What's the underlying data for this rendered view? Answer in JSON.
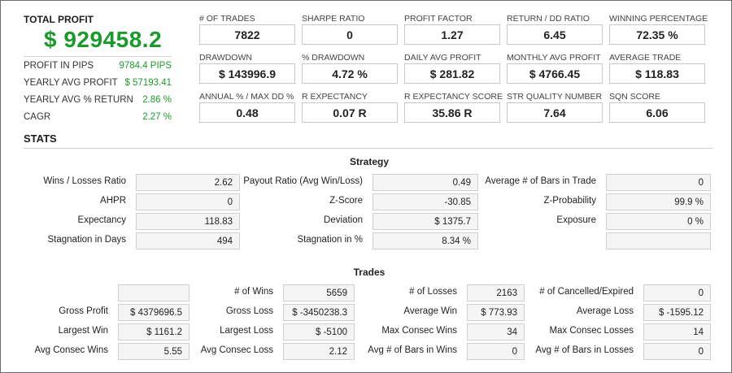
{
  "summary": {
    "total_profit_label": "TOTAL PROFIT",
    "total_profit_value": "$ 929458.2",
    "rows": [
      {
        "label": "PROFIT IN PIPS",
        "value": "9784.4 PIPS"
      },
      {
        "label": "YEARLY AVG PROFIT",
        "value": "$ 57193.41"
      },
      {
        "label": "YEARLY AVG % RETURN",
        "value": "2.86 %"
      },
      {
        "label": "CAGR",
        "value": "2.27 %"
      }
    ]
  },
  "metrics": [
    [
      {
        "label": "# OF TRADES",
        "value": "7822"
      },
      {
        "label": "SHARPE RATIO",
        "value": "0"
      },
      {
        "label": "PROFIT FACTOR",
        "value": "1.27"
      },
      {
        "label": "RETURN / DD RATIO",
        "value": "6.45"
      },
      {
        "label": "WINNING PERCENTAGE",
        "value": "72.35 %"
      }
    ],
    [
      {
        "label": "DRAWDOWN",
        "value": "$ 143996.9"
      },
      {
        "label": "% DRAWDOWN",
        "value": "4.72 %"
      },
      {
        "label": "DAILY AVG PROFIT",
        "value": "$ 281.82"
      },
      {
        "label": "MONTHLY AVG PROFIT",
        "value": "$ 4766.45"
      },
      {
        "label": "AVERAGE TRADE",
        "value": "$ 118.83"
      }
    ],
    [
      {
        "label": "ANNUAL % / MAX DD %",
        "value": "0.48"
      },
      {
        "label": "R EXPECTANCY",
        "value": "0.07 R"
      },
      {
        "label": "R EXPECTANCY SCORE",
        "value": "35.86 R"
      },
      {
        "label": "STR QUALITY NUMBER",
        "value": "7.64"
      },
      {
        "label": "SQN SCORE",
        "value": "6.06"
      }
    ]
  ],
  "stats": {
    "title": "STATS",
    "strategy": {
      "title": "Strategy",
      "rows": [
        [
          {
            "label": "Wins / Losses Ratio",
            "value": "2.62"
          },
          {
            "label": "Payout Ratio (Avg Win/Loss)",
            "value": "0.49"
          },
          {
            "label": "Average # of Bars in Trade",
            "value": "0"
          }
        ],
        [
          {
            "label": "AHPR",
            "value": "0"
          },
          {
            "label": "Z-Score",
            "value": "-30.85"
          },
          {
            "label": "Z-Probability",
            "value": "99.9 %"
          }
        ],
        [
          {
            "label": "Expectancy",
            "value": "118.83"
          },
          {
            "label": "Deviation",
            "value": "$ 1375.7"
          },
          {
            "label": "Exposure",
            "value": "0 %"
          }
        ],
        [
          {
            "label": "Stagnation in Days",
            "value": "494"
          },
          {
            "label": "Stagnation in %",
            "value": "8.34 %"
          },
          {
            "label": "",
            "value": ""
          }
        ]
      ]
    },
    "trades": {
      "title": "Trades",
      "rows": [
        [
          {
            "label": "",
            "value": ""
          },
          {
            "label": "# of Wins",
            "value": "5659"
          },
          {
            "label": "# of Losses",
            "value": "2163"
          },
          {
            "label": "# of Cancelled/Expired",
            "value": "0"
          }
        ],
        [
          {
            "label": "Gross Profit",
            "value": "$ 4379696.5"
          },
          {
            "label": "Gross Loss",
            "value": "$ -3450238.3"
          },
          {
            "label": "Average Win",
            "value": "$ 773.93"
          },
          {
            "label": "Average Loss",
            "value": "$ -1595.12"
          }
        ],
        [
          {
            "label": "Largest Win",
            "value": "$ 1161.2"
          },
          {
            "label": "Largest Loss",
            "value": "$ -5100"
          },
          {
            "label": "Max Consec Wins",
            "value": "34"
          },
          {
            "label": "Max Consec Losses",
            "value": "14"
          }
        ],
        [
          {
            "label": "Avg Consec Wins",
            "value": "5.55"
          },
          {
            "label": "Avg Consec Loss",
            "value": "2.12"
          },
          {
            "label": "Avg # of Bars in Wins",
            "value": "0"
          },
          {
            "label": "Avg # of Bars in Losses",
            "value": "0"
          }
        ]
      ]
    }
  }
}
